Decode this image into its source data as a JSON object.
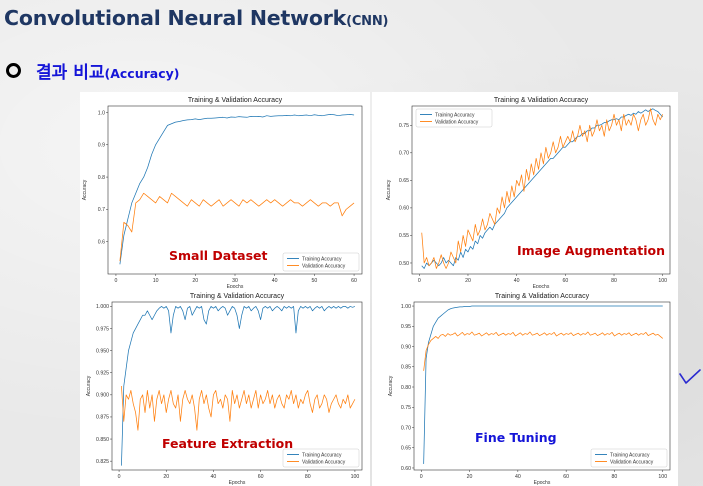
{
  "header": {
    "title": "Convolutional Neural Network",
    "title_suffix": "(CNN)",
    "bullet": "o",
    "subtitle": "결과 비교",
    "subtitle_suffix": "(Accuracy)"
  },
  "colors": {
    "title": "#1f3763",
    "subtitle": "#1515d8",
    "training": "#1f77b4",
    "validation": "#ff7f0e",
    "annotation_red": "#c00000",
    "annotation_blue": "#1515d8",
    "check": "#2a2ad0"
  },
  "chart_data": [
    {
      "type": "line",
      "title": "Training & Validation Accuracy",
      "xlabel": "Epochs",
      "ylabel": "Accuracy",
      "annotation": "Small Dataset",
      "legend": "lower-right",
      "xlim": [
        -2,
        62
      ],
      "ylim": [
        0.5,
        1.02
      ],
      "xticks": [
        0,
        10,
        20,
        30,
        40,
        50,
        60
      ],
      "yticks": [
        0.6,
        0.7,
        0.8,
        0.9,
        1.0
      ],
      "ytick_labels": [
        "0.6",
        "0.7",
        "0.8",
        "0.9",
        "1.0"
      ],
      "series": [
        {
          "name": "Training Accuracy",
          "x_start": 1,
          "values": [
            0.53,
            0.62,
            0.67,
            0.72,
            0.75,
            0.78,
            0.8,
            0.83,
            0.87,
            0.9,
            0.92,
            0.94,
            0.96,
            0.965,
            0.97,
            0.972,
            0.975,
            0.977,
            0.978,
            0.98,
            0.978,
            0.98,
            0.982,
            0.982,
            0.983,
            0.984,
            0.985,
            0.983,
            0.986,
            0.985,
            0.987,
            0.986,
            0.985,
            0.988,
            0.987,
            0.988,
            0.986,
            0.99,
            0.988,
            0.989,
            0.99,
            0.99,
            0.991,
            0.99,
            0.992,
            0.99,
            0.991,
            0.992,
            0.99,
            0.993,
            0.991,
            0.99,
            0.992,
            0.994,
            0.993,
            0.99,
            0.992,
            0.993,
            0.994,
            0.992
          ]
        },
        {
          "name": "Validation Accuracy",
          "x_start": 1,
          "values": [
            0.54,
            0.66,
            0.65,
            0.63,
            0.72,
            0.73,
            0.75,
            0.74,
            0.73,
            0.72,
            0.74,
            0.73,
            0.72,
            0.75,
            0.74,
            0.73,
            0.72,
            0.71,
            0.73,
            0.72,
            0.71,
            0.73,
            0.72,
            0.71,
            0.72,
            0.73,
            0.71,
            0.72,
            0.73,
            0.72,
            0.71,
            0.73,
            0.72,
            0.73,
            0.72,
            0.71,
            0.72,
            0.73,
            0.72,
            0.73,
            0.72,
            0.71,
            0.72,
            0.73,
            0.72,
            0.72,
            0.71,
            0.72,
            0.73,
            0.72,
            0.71,
            0.72,
            0.72,
            0.71,
            0.72,
            0.72,
            0.68,
            0.7,
            0.71,
            0.72
          ]
        }
      ]
    },
    {
      "type": "line",
      "title": "Training & Validation Accuracy",
      "xlabel": "Epochs",
      "ylabel": "Accuracy",
      "annotation": "Image Augmentation",
      "legend": "upper-left",
      "xlim": [
        -3,
        103
      ],
      "ylim": [
        0.48,
        0.785
      ],
      "xticks": [
        0,
        20,
        40,
        60,
        80,
        100
      ],
      "yticks": [
        0.5,
        0.55,
        0.6,
        0.65,
        0.7,
        0.75
      ],
      "ytick_labels": [
        "0.50",
        "0.55",
        "0.60",
        "0.65",
        "0.70",
        "0.75"
      ],
      "series": [
        {
          "name": "Training Accuracy",
          "x_start": 1,
          "values": [
            0.495,
            0.49,
            0.5,
            0.495,
            0.5,
            0.505,
            0.5,
            0.495,
            0.5,
            0.51,
            0.5,
            0.505,
            0.5,
            0.495,
            0.51,
            0.505,
            0.52,
            0.51,
            0.525,
            0.52,
            0.53,
            0.525,
            0.54,
            0.535,
            0.55,
            0.545,
            0.555,
            0.56,
            0.565,
            0.56,
            0.57,
            0.575,
            0.58,
            0.585,
            0.59,
            0.6,
            0.605,
            0.61,
            0.615,
            0.62,
            0.625,
            0.63,
            0.635,
            0.64,
            0.645,
            0.65,
            0.655,
            0.66,
            0.665,
            0.67,
            0.675,
            0.68,
            0.685,
            0.69,
            0.69,
            0.695,
            0.7,
            0.705,
            0.71,
            0.71,
            0.715,
            0.72,
            0.72,
            0.725,
            0.73,
            0.73,
            0.735,
            0.735,
            0.74,
            0.74,
            0.745,
            0.745,
            0.75,
            0.75,
            0.752,
            0.755,
            0.755,
            0.758,
            0.76,
            0.76,
            0.762,
            0.76,
            0.765,
            0.765,
            0.768,
            0.77,
            0.768,
            0.772,
            0.77,
            0.775,
            0.772,
            0.775,
            0.778,
            0.775,
            0.778,
            0.78,
            0.777,
            0.775,
            0.77,
            0.765
          ]
        },
        {
          "name": "Validation Accuracy",
          "x_start": 1,
          "values": [
            0.555,
            0.5,
            0.51,
            0.495,
            0.5,
            0.51,
            0.49,
            0.5,
            0.515,
            0.5,
            0.49,
            0.5,
            0.52,
            0.51,
            0.5,
            0.54,
            0.52,
            0.55,
            0.53,
            0.56,
            0.55,
            0.54,
            0.57,
            0.55,
            0.56,
            0.58,
            0.56,
            0.57,
            0.59,
            0.58,
            0.57,
            0.6,
            0.59,
            0.62,
            0.6,
            0.63,
            0.61,
            0.64,
            0.62,
            0.65,
            0.64,
            0.66,
            0.63,
            0.67,
            0.65,
            0.68,
            0.66,
            0.69,
            0.67,
            0.7,
            0.68,
            0.71,
            0.69,
            0.7,
            0.72,
            0.7,
            0.71,
            0.73,
            0.71,
            0.72,
            0.73,
            0.72,
            0.74,
            0.72,
            0.73,
            0.75,
            0.73,
            0.74,
            0.72,
            0.75,
            0.73,
            0.74,
            0.76,
            0.74,
            0.75,
            0.73,
            0.76,
            0.74,
            0.75,
            0.77,
            0.75,
            0.76,
            0.74,
            0.77,
            0.75,
            0.76,
            0.75,
            0.77,
            0.76,
            0.74,
            0.76,
            0.77,
            0.75,
            0.76,
            0.78,
            0.76,
            0.75,
            0.77,
            0.76,
            0.77
          ]
        }
      ]
    },
    {
      "type": "line",
      "title": "Training & Validation Accuracy",
      "xlabel": "Epochs",
      "ylabel": "Accuracy",
      "annotation": "Feature Extraction",
      "legend": "lower-right",
      "xlim": [
        -3,
        103
      ],
      "ylim": [
        0.815,
        1.005
      ],
      "xticks": [
        0,
        20,
        40,
        60,
        80,
        100
      ],
      "yticks": [
        0.825,
        0.85,
        0.875,
        0.9,
        0.925,
        0.95,
        0.975,
        1.0
      ],
      "ytick_labels": [
        "0.825",
        "0.850",
        "0.875",
        "0.900",
        "0.925",
        "0.950",
        "0.975",
        "1.000"
      ],
      "series": [
        {
          "name": "Training Accuracy",
          "x_start": 1,
          "values": [
            0.82,
            0.91,
            0.93,
            0.95,
            0.96,
            0.97,
            0.975,
            0.98,
            0.985,
            0.99,
            0.99,
            0.995,
            0.99,
            0.985,
            0.99,
            0.995,
            0.998,
            1.0,
            0.998,
            1.0,
            0.995,
            0.97,
            0.99,
            1.0,
            0.998,
            1.0,
            0.995,
            0.985,
            0.998,
            1.0,
            0.99,
            0.995,
            1.0,
            0.998,
            1.0,
            0.985,
            0.98,
            0.995,
            1.0,
            0.998,
            1.0,
            0.995,
            0.998,
            1.0,
            0.998,
            0.99,
            0.995,
            1.0,
            0.998,
            0.99,
            0.975,
            0.99,
            1.0,
            0.998,
            1.0,
            0.995,
            0.998,
            1.0,
            0.995,
            0.985,
            0.998,
            1.0,
            0.998,
            1.0,
            0.995,
            0.998,
            1.0,
            0.998,
            0.995,
            1.0,
            0.998,
            1.0,
            0.998,
            1.0,
            0.97,
            0.995,
            1.0,
            0.998,
            1.0,
            0.998,
            1.0,
            0.995,
            0.998,
            1.0,
            0.998,
            1.0,
            0.995,
            0.998,
            1.0,
            0.998,
            1.0,
            0.998,
            1.0,
            0.998,
            1.0,
            1.0,
            0.998,
            1.0,
            0.999,
            1.0
          ]
        },
        {
          "name": "Validation Accuracy",
          "x_start": 1,
          "values": [
            0.91,
            0.87,
            0.9,
            0.895,
            0.905,
            0.89,
            0.88,
            0.86,
            0.895,
            0.9,
            0.88,
            0.905,
            0.885,
            0.9,
            0.87,
            0.895,
            0.905,
            0.89,
            0.9,
            0.88,
            0.895,
            0.905,
            0.89,
            0.885,
            0.9,
            0.87,
            0.895,
            0.905,
            0.895,
            0.89,
            0.9,
            0.885,
            0.86,
            0.895,
            0.905,
            0.89,
            0.9,
            0.885,
            0.875,
            0.9,
            0.905,
            0.89,
            0.895,
            0.885,
            0.9,
            0.895,
            0.87,
            0.905,
            0.89,
            0.9,
            0.885,
            0.895,
            0.905,
            0.89,
            0.9,
            0.885,
            0.895,
            0.905,
            0.885,
            0.9,
            0.89,
            0.895,
            0.905,
            0.89,
            0.9,
            0.885,
            0.895,
            0.9,
            0.89,
            0.885,
            0.9,
            0.895,
            0.905,
            0.89,
            0.9,
            0.885,
            0.895,
            0.89,
            0.9,
            0.905,
            0.89,
            0.88,
            0.895,
            0.9,
            0.885,
            0.89,
            0.9,
            0.895,
            0.88,
            0.89,
            0.895,
            0.9,
            0.89,
            0.885,
            0.895,
            0.89,
            0.9,
            0.885,
            0.89,
            0.895
          ]
        }
      ]
    },
    {
      "type": "line",
      "title": "Training & Validation Accuracy",
      "xlabel": "Epochs",
      "ylabel": "Accuracy",
      "annotation": "Fine Tuning",
      "legend": "lower-right",
      "xlim": [
        -3,
        103
      ],
      "ylim": [
        0.595,
        1.01
      ],
      "xticks": [
        0,
        20,
        40,
        60,
        80,
        100
      ],
      "yticks": [
        0.6,
        0.65,
        0.7,
        0.75,
        0.8,
        0.85,
        0.9,
        0.95,
        1.0
      ],
      "ytick_labels": [
        "0.60",
        "0.65",
        "0.70",
        "0.75",
        "0.80",
        "0.85",
        "0.90",
        "0.95",
        "1.00"
      ],
      "series": [
        {
          "name": "Training Accuracy",
          "x_start": 1,
          "values": [
            0.61,
            0.87,
            0.91,
            0.93,
            0.95,
            0.96,
            0.97,
            0.975,
            0.98,
            0.985,
            0.99,
            0.993,
            0.995,
            0.996,
            0.997,
            0.998,
            0.998,
            0.999,
            0.999,
            0.999,
            1.0,
            1.0,
            1.0,
            1.0,
            1.0,
            1.0,
            1.0,
            1.0,
            1.0,
            1.0,
            1.0,
            1.0,
            1.0,
            1.0,
            1.0,
            1.0,
            1.0,
            1.0,
            1.0,
            1.0,
            1.0,
            1.0,
            1.0,
            1.0,
            1.0,
            1.0,
            1.0,
            1.0,
            1.0,
            1.0,
            1.0,
            1.0,
            1.0,
            1.0,
            1.0,
            1.0,
            1.0,
            1.0,
            1.0,
            1.0,
            1.0,
            1.0,
            1.0,
            1.0,
            1.0,
            1.0,
            1.0,
            1.0,
            1.0,
            1.0,
            1.0,
            1.0,
            1.0,
            1.0,
            1.0,
            1.0,
            1.0,
            1.0,
            1.0,
            1.0,
            1.0,
            1.0,
            1.0,
            1.0,
            1.0,
            1.0,
            1.0,
            1.0,
            1.0,
            1.0,
            1.0,
            1.0,
            1.0,
            1.0,
            1.0,
            1.0,
            1.0,
            1.0,
            1.0,
            1.0
          ]
        },
        {
          "name": "Validation Accuracy",
          "x_start": 1,
          "values": [
            0.84,
            0.89,
            0.905,
            0.915,
            0.92,
            0.925,
            0.92,
            0.928,
            0.93,
            0.925,
            0.932,
            0.928,
            0.93,
            0.934,
            0.926,
            0.93,
            0.935,
            0.928,
            0.932,
            0.93,
            0.936,
            0.928,
            0.93,
            0.933,
            0.926,
            0.93,
            0.934,
            0.928,
            0.932,
            0.93,
            0.935,
            0.927,
            0.93,
            0.933,
            0.928,
            0.932,
            0.93,
            0.935,
            0.926,
            0.93,
            0.934,
            0.928,
            0.932,
            0.93,
            0.936,
            0.928,
            0.93,
            0.933,
            0.927,
            0.93,
            0.934,
            0.928,
            0.932,
            0.93,
            0.935,
            0.926,
            0.93,
            0.933,
            0.928,
            0.932,
            0.93,
            0.934,
            0.927,
            0.93,
            0.933,
            0.928,
            0.932,
            0.93,
            0.936,
            0.928,
            0.93,
            0.933,
            0.927,
            0.93,
            0.934,
            0.928,
            0.932,
            0.93,
            0.935,
            0.926,
            0.93,
            0.933,
            0.928,
            0.932,
            0.93,
            0.934,
            0.927,
            0.93,
            0.933,
            0.928,
            0.932,
            0.93,
            0.935,
            0.927,
            0.93,
            0.933,
            0.928,
            0.93,
            0.925,
            0.92
          ]
        }
      ]
    }
  ]
}
